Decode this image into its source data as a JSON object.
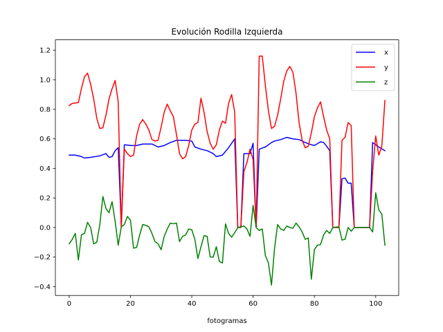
{
  "chart_data": {
    "type": "line",
    "title": "Evolución Rodilla Izquierda",
    "xlabel": "fotogramas",
    "ylabel": "",
    "xlim": [
      -4.5,
      107.5
    ],
    "ylim": [
      -0.46,
      1.27
    ],
    "xticks": [
      0,
      20,
      40,
      60,
      80,
      100
    ],
    "xtick_labels": [
      "0",
      "20",
      "40",
      "60",
      "80",
      "100"
    ],
    "yticks": [
      -0.4,
      -0.2,
      0.0,
      0.2,
      0.4,
      0.6,
      0.8,
      1.0,
      1.2
    ],
    "ytick_labels": [
      "−0.4",
      "−0.2",
      "0.0",
      "0.2",
      "0.4",
      "0.6",
      "0.8",
      "1.0",
      "1.2"
    ],
    "grid": false,
    "legend_position": "top-right",
    "series": [
      {
        "name": "x",
        "color": "#0000ff",
        "points": [
          [
            0,
            0.49
          ],
          [
            2,
            0.49
          ],
          [
            4,
            0.48
          ],
          [
            5,
            0.47
          ],
          [
            7,
            0.475
          ],
          [
            10,
            0.485
          ],
          [
            12,
            0.5
          ],
          [
            13,
            0.475
          ],
          [
            14,
            0.48
          ],
          [
            15,
            0.52
          ],
          [
            16,
            0.54
          ],
          [
            17,
            0.01
          ],
          [
            18,
            0.56
          ],
          [
            20,
            0.555
          ],
          [
            22,
            0.555
          ],
          [
            24,
            0.565
          ],
          [
            27,
            0.565
          ],
          [
            29,
            0.545
          ],
          [
            31,
            0.555
          ],
          [
            33,
            0.575
          ],
          [
            35,
            0.59
          ],
          [
            38,
            0.59
          ],
          [
            40,
            0.585
          ],
          [
            41,
            0.545
          ],
          [
            43,
            0.53
          ],
          [
            45,
            0.52
          ],
          [
            47,
            0.5
          ],
          [
            48,
            0.48
          ],
          [
            50,
            0.49
          ],
          [
            52,
            0.54
          ],
          [
            54,
            0.6
          ],
          [
            55,
            0.0
          ],
          [
            56,
            0.0
          ],
          [
            57,
            0.5
          ],
          [
            59,
            0.5
          ],
          [
            60,
            0.57
          ],
          [
            61,
            0.0
          ],
          [
            62,
            0.53
          ],
          [
            64,
            0.545
          ],
          [
            66,
            0.575
          ],
          [
            67,
            0.585
          ],
          [
            69,
            0.595
          ],
          [
            71,
            0.61
          ],
          [
            73,
            0.6
          ],
          [
            75,
            0.595
          ],
          [
            77,
            0.575
          ],
          [
            79,
            0.56
          ],
          [
            80,
            0.555
          ],
          [
            82,
            0.58
          ],
          [
            83,
            0.575
          ],
          [
            84,
            0.55
          ],
          [
            85,
            0.52
          ],
          [
            86,
            0.0
          ],
          [
            88,
            0.0
          ],
          [
            89,
            0.33
          ],
          [
            90,
            0.335
          ],
          [
            91,
            0.3
          ],
          [
            92,
            0.3
          ],
          [
            93,
            0.0
          ],
          [
            98,
            0.0
          ],
          [
            99,
            0.575
          ],
          [
            101,
            0.545
          ],
          [
            103,
            0.52
          ]
        ]
      },
      {
        "name": "y",
        "color": "#ff0000",
        "points": [
          [
            0,
            0.825
          ],
          [
            1,
            0.84
          ],
          [
            3,
            0.845
          ],
          [
            4,
            0.94
          ],
          [
            5,
            1.02
          ],
          [
            6,
            1.045
          ],
          [
            7,
            0.97
          ],
          [
            8,
            0.87
          ],
          [
            9,
            0.74
          ],
          [
            10,
            0.67
          ],
          [
            11,
            0.675
          ],
          [
            12,
            0.76
          ],
          [
            13,
            0.87
          ],
          [
            14,
            0.94
          ],
          [
            15,
            0.995
          ],
          [
            16,
            0.85
          ],
          [
            17,
            0.0
          ],
          [
            18,
            0.53
          ],
          [
            19,
            0.5
          ],
          [
            20,
            0.48
          ],
          [
            21,
            0.49
          ],
          [
            22,
            0.62
          ],
          [
            23,
            0.7
          ],
          [
            24,
            0.73
          ],
          [
            25,
            0.7
          ],
          [
            26,
            0.66
          ],
          [
            27,
            0.595
          ],
          [
            28,
            0.585
          ],
          [
            29,
            0.59
          ],
          [
            30,
            0.68
          ],
          [
            31,
            0.78
          ],
          [
            32,
            0.835
          ],
          [
            33,
            0.79
          ],
          [
            34,
            0.75
          ],
          [
            35,
            0.63
          ],
          [
            36,
            0.5
          ],
          [
            37,
            0.465
          ],
          [
            38,
            0.48
          ],
          [
            39,
            0.555
          ],
          [
            40,
            0.66
          ],
          [
            41,
            0.7
          ],
          [
            42,
            0.71
          ],
          [
            43,
            0.875
          ],
          [
            44,
            0.78
          ],
          [
            45,
            0.65
          ],
          [
            46,
            0.57
          ],
          [
            47,
            0.53
          ],
          [
            48,
            0.56
          ],
          [
            49,
            0.66
          ],
          [
            50,
            0.72
          ],
          [
            51,
            0.705
          ],
          [
            52,
            0.84
          ],
          [
            53,
            0.9
          ],
          [
            54,
            0.78
          ],
          [
            55,
            0.0
          ],
          [
            56,
            0.0
          ],
          [
            57,
            0.38
          ],
          [
            58,
            0.44
          ],
          [
            59,
            0.53
          ],
          [
            60,
            0.46
          ],
          [
            61,
            0.0
          ],
          [
            62,
            1.16
          ],
          [
            63,
            1.16
          ],
          [
            64,
            0.96
          ],
          [
            65,
            0.79
          ],
          [
            66,
            0.67
          ],
          [
            67,
            0.685
          ],
          [
            68,
            0.76
          ],
          [
            69,
            0.87
          ],
          [
            70,
            0.99
          ],
          [
            71,
            1.06
          ],
          [
            72,
            1.09
          ],
          [
            73,
            1.05
          ],
          [
            74,
            0.91
          ],
          [
            75,
            0.71
          ],
          [
            76,
            0.59
          ],
          [
            77,
            0.54
          ],
          [
            78,
            0.55
          ],
          [
            79,
            0.64
          ],
          [
            80,
            0.75
          ],
          [
            81,
            0.81
          ],
          [
            82,
            0.85
          ],
          [
            83,
            0.75
          ],
          [
            84,
            0.66
          ],
          [
            85,
            0.6
          ],
          [
            86,
            0.0
          ],
          [
            88,
            0.0
          ],
          [
            89,
            0.59
          ],
          [
            90,
            0.61
          ],
          [
            91,
            0.71
          ],
          [
            92,
            0.69
          ],
          [
            93,
            0.0
          ],
          [
            98,
            0.0
          ],
          [
            99,
            0.38
          ],
          [
            100,
            0.62
          ],
          [
            101,
            0.49
          ],
          [
            102,
            0.55
          ],
          [
            103,
            0.86
          ]
        ]
      },
      {
        "name": "z",
        "color": "#008000",
        "points": [
          [
            0,
            -0.11
          ],
          [
            1,
            -0.08
          ],
          [
            2,
            -0.04
          ],
          [
            3,
            -0.22
          ],
          [
            4,
            -0.05
          ],
          [
            5,
            -0.04
          ],
          [
            6,
            0.035
          ],
          [
            7,
            0.0
          ],
          [
            8,
            -0.11
          ],
          [
            9,
            -0.1
          ],
          [
            10,
            0.02
          ],
          [
            11,
            0.21
          ],
          [
            12,
            0.13
          ],
          [
            13,
            0.1
          ],
          [
            14,
            0.175
          ],
          [
            15,
            0.04
          ],
          [
            16,
            -0.12
          ],
          [
            17,
            0.005
          ],
          [
            18,
            0.02
          ],
          [
            19,
            0.075
          ],
          [
            20,
            0.05
          ],
          [
            21,
            -0.14
          ],
          [
            22,
            -0.135
          ],
          [
            23,
            -0.05
          ],
          [
            24,
            0.02
          ],
          [
            25,
            0.015
          ],
          [
            26,
            0.005
          ],
          [
            27,
            -0.04
          ],
          [
            28,
            -0.095
          ],
          [
            29,
            -0.11
          ],
          [
            30,
            -0.15
          ],
          [
            31,
            -0.06
          ],
          [
            32,
            -0.01
          ],
          [
            33,
            0.03
          ],
          [
            34,
            0.025
          ],
          [
            35,
            0.03
          ],
          [
            36,
            -0.095
          ],
          [
            37,
            -0.06
          ],
          [
            38,
            -0.05
          ],
          [
            39,
            -0.01
          ],
          [
            40,
            -0.015
          ],
          [
            41,
            -0.08
          ],
          [
            42,
            -0.21
          ],
          [
            43,
            -0.13
          ],
          [
            44,
            -0.055
          ],
          [
            45,
            -0.06
          ],
          [
            46,
            -0.2
          ],
          [
            47,
            -0.2
          ],
          [
            48,
            -0.13
          ],
          [
            49,
            -0.23
          ],
          [
            50,
            -0.24
          ],
          [
            51,
            0.025
          ],
          [
            52,
            -0.04
          ],
          [
            53,
            -0.065
          ],
          [
            54,
            -0.035
          ],
          [
            55,
            0.0
          ],
          [
            56,
            0.005
          ],
          [
            57,
            0.01
          ],
          [
            58,
            -0.01
          ],
          [
            59,
            -0.06
          ],
          [
            60,
            0.15
          ],
          [
            61,
            0.0
          ],
          [
            62,
            -0.02
          ],
          [
            63,
            -0.01
          ],
          [
            64,
            -0.19
          ],
          [
            65,
            -0.24
          ],
          [
            66,
            -0.39
          ],
          [
            67,
            -0.14
          ],
          [
            68,
            0.02
          ],
          [
            69,
            -0.01
          ],
          [
            70,
            -0.02
          ],
          [
            71,
            0.01
          ],
          [
            72,
            0.0
          ],
          [
            73,
            -0.005
          ],
          [
            74,
            0.03
          ],
          [
            75,
            0.005
          ],
          [
            76,
            -0.03
          ],
          [
            77,
            -0.08
          ],
          [
            78,
            -0.07
          ],
          [
            79,
            -0.35
          ],
          [
            80,
            -0.15
          ],
          [
            81,
            -0.12
          ],
          [
            82,
            -0.115
          ],
          [
            83,
            -0.05
          ],
          [
            84,
            -0.02
          ],
          [
            85,
            -0.04
          ],
          [
            86,
            0.0
          ],
          [
            88,
            0.005
          ],
          [
            89,
            -0.085
          ],
          [
            90,
            -0.08
          ],
          [
            91,
            0.0
          ],
          [
            92,
            -0.025
          ],
          [
            93,
            0.0
          ],
          [
            98,
            0.0
          ],
          [
            99,
            -0.03
          ],
          [
            100,
            0.235
          ],
          [
            101,
            0.12
          ],
          [
            102,
            0.09
          ],
          [
            103,
            -0.12
          ]
        ]
      }
    ]
  }
}
